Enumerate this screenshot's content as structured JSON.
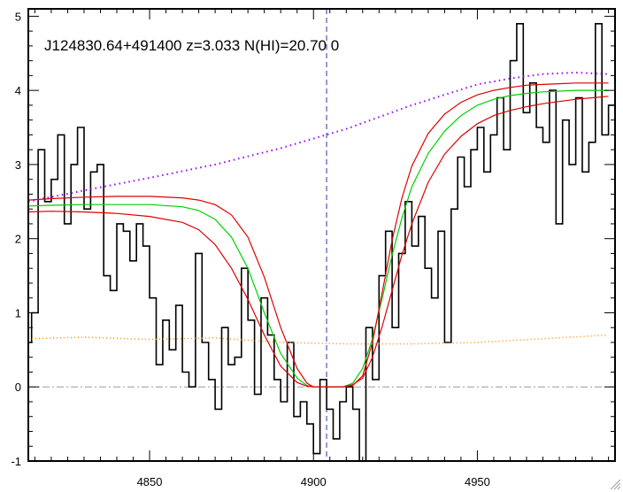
{
  "chart_data": {
    "type": "line",
    "title": "J124830.64+491400 z=3.033 N(HI)=20.70 0",
    "xlabel": "",
    "ylabel": "",
    "xlim": [
      4813,
      4992
    ],
    "ylim": [
      -1,
      5.1
    ],
    "x_ticks": [
      4850,
      4900,
      4950
    ],
    "y_ticks": [
      -1,
      0,
      1,
      2,
      3,
      4,
      5
    ],
    "grid": false,
    "reference_line_x": 4904,
    "colors": {
      "flux": "#000000",
      "model": "#00d000",
      "model_bounds": "#e00000",
      "continuum": "#9a00ff",
      "error": "#ff8c00",
      "zero": "#9a9a9a",
      "reference": "#2a3aaa"
    },
    "series": [
      {
        "role": "flux",
        "x": [
          4813,
          4815,
          4817,
          4819,
          4821,
          4823,
          4825,
          4827,
          4829,
          4831,
          4833,
          4835,
          4837,
          4839,
          4841,
          4843,
          4845,
          4847,
          4849,
          4851,
          4853,
          4855,
          4857,
          4859,
          4861,
          4863,
          4865,
          4867,
          4869,
          4871,
          4873,
          4875,
          4877,
          4879,
          4881,
          4883,
          4885,
          4887,
          4889,
          4891,
          4893,
          4895,
          4897,
          4899,
          4901,
          4903,
          4905,
          4907,
          4909,
          4911,
          4913,
          4915,
          4917,
          4919,
          4921,
          4923,
          4925,
          4927,
          4929,
          4931,
          4933,
          4935,
          4937,
          4939,
          4941,
          4943,
          4945,
          4947,
          4949,
          4951,
          4953,
          4955,
          4957,
          4959,
          4961,
          4963,
          4965,
          4967,
          4969,
          4971,
          4973,
          4975,
          4977,
          4979,
          4981,
          4983,
          4985,
          4987,
          4989,
          4991
        ],
        "y": [
          0.6,
          1.0,
          3.2,
          2.5,
          2.8,
          3.4,
          2.2,
          3.0,
          3.5,
          2.4,
          2.9,
          3.0,
          1.5,
          1.3,
          2.2,
          2.1,
          1.7,
          2.2,
          1.9,
          1.2,
          0.3,
          0.9,
          0.5,
          1.1,
          0.2,
          0.0,
          1.8,
          0.6,
          0.1,
          -0.3,
          0.8,
          0.3,
          0.4,
          1.6,
          0.9,
          -0.1,
          1.2,
          0.7,
          0.1,
          -0.2,
          0.6,
          -0.4,
          -0.2,
          -0.5,
          -0.9,
          0.1,
          -0.3,
          -0.7,
          -0.2,
          0.0,
          -0.3,
          -1.0,
          0.8,
          0.1,
          1.5,
          2.1,
          0.8,
          1.8,
          2.5,
          1.9,
          2.3,
          1.6,
          1.2,
          2.1,
          0.6,
          2.4,
          3.1,
          2.7,
          3.2,
          3.5,
          2.9,
          3.4,
          3.9,
          3.2,
          4.4,
          4.9,
          3.7,
          4.1,
          3.5,
          3.3,
          4.0,
          2.2,
          3.6,
          3.0,
          3.9,
          2.9,
          3.3,
          4.9,
          3.4,
          3.8
        ]
      },
      {
        "role": "model",
        "x": [
          4813,
          4820,
          4830,
          4840,
          4850,
          4860,
          4865,
          4870,
          4875,
          4880,
          4885,
          4890,
          4895,
          4898,
          4900,
          4903,
          4906,
          4909,
          4912,
          4915,
          4918,
          4921,
          4924,
          4927,
          4930,
          4935,
          4940,
          4945,
          4950,
          4955,
          4960,
          4965,
          4970,
          4975,
          4980,
          4985,
          4990
        ],
        "y": [
          2.44,
          2.45,
          2.46,
          2.46,
          2.46,
          2.43,
          2.38,
          2.26,
          2.02,
          1.6,
          1.0,
          0.45,
          0.12,
          0.02,
          0.0,
          0.0,
          0.0,
          0.0,
          0.05,
          0.25,
          0.65,
          1.2,
          1.78,
          2.28,
          2.7,
          3.15,
          3.45,
          3.66,
          3.8,
          3.88,
          3.93,
          3.96,
          3.98,
          3.99,
          4.0,
          4.0,
          4.0
        ]
      },
      {
        "role": "model-upper",
        "x": [
          4813,
          4820,
          4830,
          4840,
          4850,
          4860,
          4865,
          4870,
          4875,
          4880,
          4885,
          4890,
          4895,
          4898,
          4900,
          4903,
          4906,
          4909,
          4912,
          4915,
          4918,
          4921,
          4924,
          4927,
          4930,
          4935,
          4940,
          4945,
          4950,
          4955,
          4960,
          4965,
          4970,
          4975,
          4980,
          4985,
          4990
        ],
        "y": [
          2.52,
          2.54,
          2.56,
          2.57,
          2.57,
          2.55,
          2.52,
          2.46,
          2.32,
          2.02,
          1.48,
          0.8,
          0.25,
          0.05,
          0.0,
          0.0,
          0.0,
          0.0,
          0.02,
          0.15,
          0.6,
          1.28,
          1.98,
          2.55,
          2.98,
          3.42,
          3.68,
          3.84,
          3.94,
          4.0,
          4.04,
          4.07,
          4.08,
          4.09,
          4.1,
          4.1,
          4.1
        ]
      },
      {
        "role": "model-lower",
        "x": [
          4813,
          4820,
          4830,
          4840,
          4850,
          4860,
          4865,
          4870,
          4875,
          4880,
          4885,
          4890,
          4895,
          4898,
          4900,
          4903,
          4906,
          4909,
          4912,
          4915,
          4918,
          4921,
          4924,
          4927,
          4930,
          4935,
          4940,
          4945,
          4950,
          4955,
          4960,
          4965,
          4970,
          4975,
          4980,
          4985,
          4990
        ],
        "y": [
          2.36,
          2.37,
          2.36,
          2.34,
          2.3,
          2.22,
          2.12,
          1.92,
          1.6,
          1.18,
          0.7,
          0.28,
          0.06,
          0.01,
          0.0,
          0.0,
          0.0,
          0.0,
          0.03,
          0.12,
          0.4,
          0.82,
          1.3,
          1.78,
          2.2,
          2.76,
          3.14,
          3.38,
          3.55,
          3.66,
          3.73,
          3.78,
          3.82,
          3.85,
          3.88,
          3.9,
          3.92
        ]
      },
      {
        "role": "continuum",
        "x": [
          4813,
          4830,
          4850,
          4870,
          4890,
          4910,
          4930,
          4950,
          4960,
          4970,
          4980,
          4990
        ],
        "y": [
          2.5,
          2.65,
          2.82,
          3.0,
          3.22,
          3.48,
          3.8,
          4.08,
          4.16,
          4.22,
          4.24,
          4.22
        ]
      },
      {
        "role": "error",
        "x": [
          4813,
          4830,
          4850,
          4870,
          4890,
          4910,
          4930,
          4950,
          4970,
          4990
        ],
        "y": [
          0.65,
          0.67,
          0.64,
          0.66,
          0.6,
          0.58,
          0.58,
          0.6,
          0.65,
          0.7
        ]
      }
    ]
  }
}
